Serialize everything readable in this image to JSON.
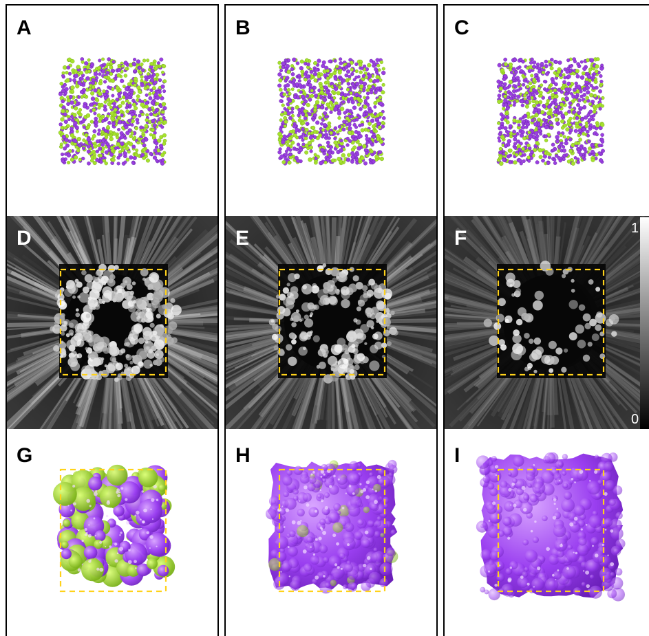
{
  "panels": {
    "a": "A",
    "b": "B",
    "c": "C",
    "d": "D",
    "e": "E",
    "f": "F",
    "g": "G",
    "h": "H",
    "i": "I"
  },
  "colorbar": {
    "max": "1",
    "min": "0"
  },
  "colors": {
    "particle_green": "#a6e22e",
    "particle_purple": "#9b3fe0",
    "surface_purple": "#9a3ff0",
    "surface_green": "#9be21d",
    "box_outline": "#ffd21a",
    "panel_border": "#000000"
  }
}
